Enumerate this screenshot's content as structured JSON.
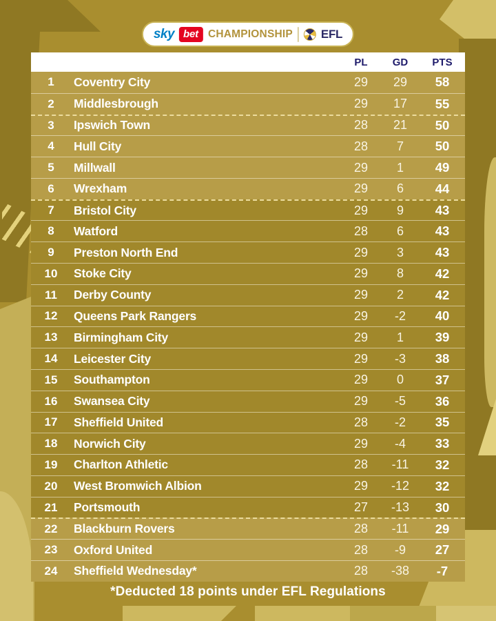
{
  "badge": {
    "sky": "sky",
    "bet": "bet",
    "league": "CHAMPIONSHIP",
    "efl": "EFL"
  },
  "table": {
    "columns": {
      "pl": "PL",
      "gd": "GD",
      "pts": "PTS"
    },
    "rows": [
      {
        "pos": "1",
        "team": "Coventry City",
        "pl": "29",
        "gd": "29",
        "pts": "58",
        "zone": "promotion",
        "dashed_above": false
      },
      {
        "pos": "2",
        "team": "Middlesbrough",
        "pl": "29",
        "gd": "17",
        "pts": "55",
        "zone": "promotion",
        "dashed_above": false
      },
      {
        "pos": "3",
        "team": "Ipswich Town",
        "pl": "28",
        "gd": "21",
        "pts": "50",
        "zone": "playoff",
        "dashed_above": true
      },
      {
        "pos": "4",
        "team": "Hull City",
        "pl": "28",
        "gd": "7",
        "pts": "50",
        "zone": "playoff",
        "dashed_above": false
      },
      {
        "pos": "5",
        "team": "Millwall",
        "pl": "29",
        "gd": "1",
        "pts": "49",
        "zone": "playoff",
        "dashed_above": false
      },
      {
        "pos": "6",
        "team": "Wrexham",
        "pl": "29",
        "gd": "6",
        "pts": "44",
        "zone": "playoff",
        "dashed_above": false
      },
      {
        "pos": "7",
        "team": "Bristol City",
        "pl": "29",
        "gd": "9",
        "pts": "43",
        "zone": "mid",
        "dashed_above": true
      },
      {
        "pos": "8",
        "team": "Watford",
        "pl": "28",
        "gd": "6",
        "pts": "43",
        "zone": "mid",
        "dashed_above": false
      },
      {
        "pos": "9",
        "team": "Preston North End",
        "pl": "29",
        "gd": "3",
        "pts": "43",
        "zone": "mid",
        "dashed_above": false
      },
      {
        "pos": "10",
        "team": "Stoke City",
        "pl": "29",
        "gd": "8",
        "pts": "42",
        "zone": "mid",
        "dashed_above": false
      },
      {
        "pos": "11",
        "team": "Derby County",
        "pl": "29",
        "gd": "2",
        "pts": "42",
        "zone": "mid",
        "dashed_above": false
      },
      {
        "pos": "12",
        "team": "Queens Park Rangers",
        "pl": "29",
        "gd": "-2",
        "pts": "40",
        "zone": "mid",
        "dashed_above": false
      },
      {
        "pos": "13",
        "team": "Birmingham City",
        "pl": "29",
        "gd": "1",
        "pts": "39",
        "zone": "mid",
        "dashed_above": false
      },
      {
        "pos": "14",
        "team": "Leicester City",
        "pl": "29",
        "gd": "-3",
        "pts": "38",
        "zone": "mid",
        "dashed_above": false
      },
      {
        "pos": "15",
        "team": "Southampton",
        "pl": "29",
        "gd": "0",
        "pts": "37",
        "zone": "mid",
        "dashed_above": false
      },
      {
        "pos": "16",
        "team": "Swansea City",
        "pl": "29",
        "gd": "-5",
        "pts": "36",
        "zone": "mid",
        "dashed_above": false
      },
      {
        "pos": "17",
        "team": "Sheffield United",
        "pl": "28",
        "gd": "-2",
        "pts": "35",
        "zone": "mid",
        "dashed_above": false
      },
      {
        "pos": "18",
        "team": "Norwich City",
        "pl": "29",
        "gd": "-4",
        "pts": "33",
        "zone": "mid",
        "dashed_above": false
      },
      {
        "pos": "19",
        "team": "Charlton Athletic",
        "pl": "28",
        "gd": "-11",
        "pts": "32",
        "zone": "mid",
        "dashed_above": false
      },
      {
        "pos": "20",
        "team": "West Bromwich Albion",
        "pl": "29",
        "gd": "-12",
        "pts": "32",
        "zone": "mid",
        "dashed_above": false
      },
      {
        "pos": "21",
        "team": "Portsmouth",
        "pl": "27",
        "gd": "-13",
        "pts": "30",
        "zone": "mid",
        "dashed_above": false
      },
      {
        "pos": "22",
        "team": "Blackburn Rovers",
        "pl": "28",
        "gd": "-11",
        "pts": "29",
        "zone": "relegation",
        "dashed_above": true
      },
      {
        "pos": "23",
        "team": "Oxford United",
        "pl": "28",
        "gd": "-9",
        "pts": "27",
        "zone": "relegation",
        "dashed_above": false
      },
      {
        "pos": "24",
        "team": "Sheffield Wednesday*",
        "pl": "28",
        "gd": "-38",
        "pts": "-7",
        "zone": "relegation",
        "dashed_above": false
      }
    ]
  },
  "footer": {
    "note": "*Deducted 18 points under EFL Regulations"
  },
  "colors": {
    "background_gold": "#a98e2f",
    "row_highlight_gold": "#b79d48",
    "row_normal_gold": "#a1882b",
    "header_navy": "#1e1b6b",
    "bet_red": "#e40520",
    "sky_blue": "#0080c6",
    "deco_dark_gold": "#8f7823",
    "deco_light_gold": "#cdb85f",
    "dashed_line_cream": "#ecdc9e"
  }
}
